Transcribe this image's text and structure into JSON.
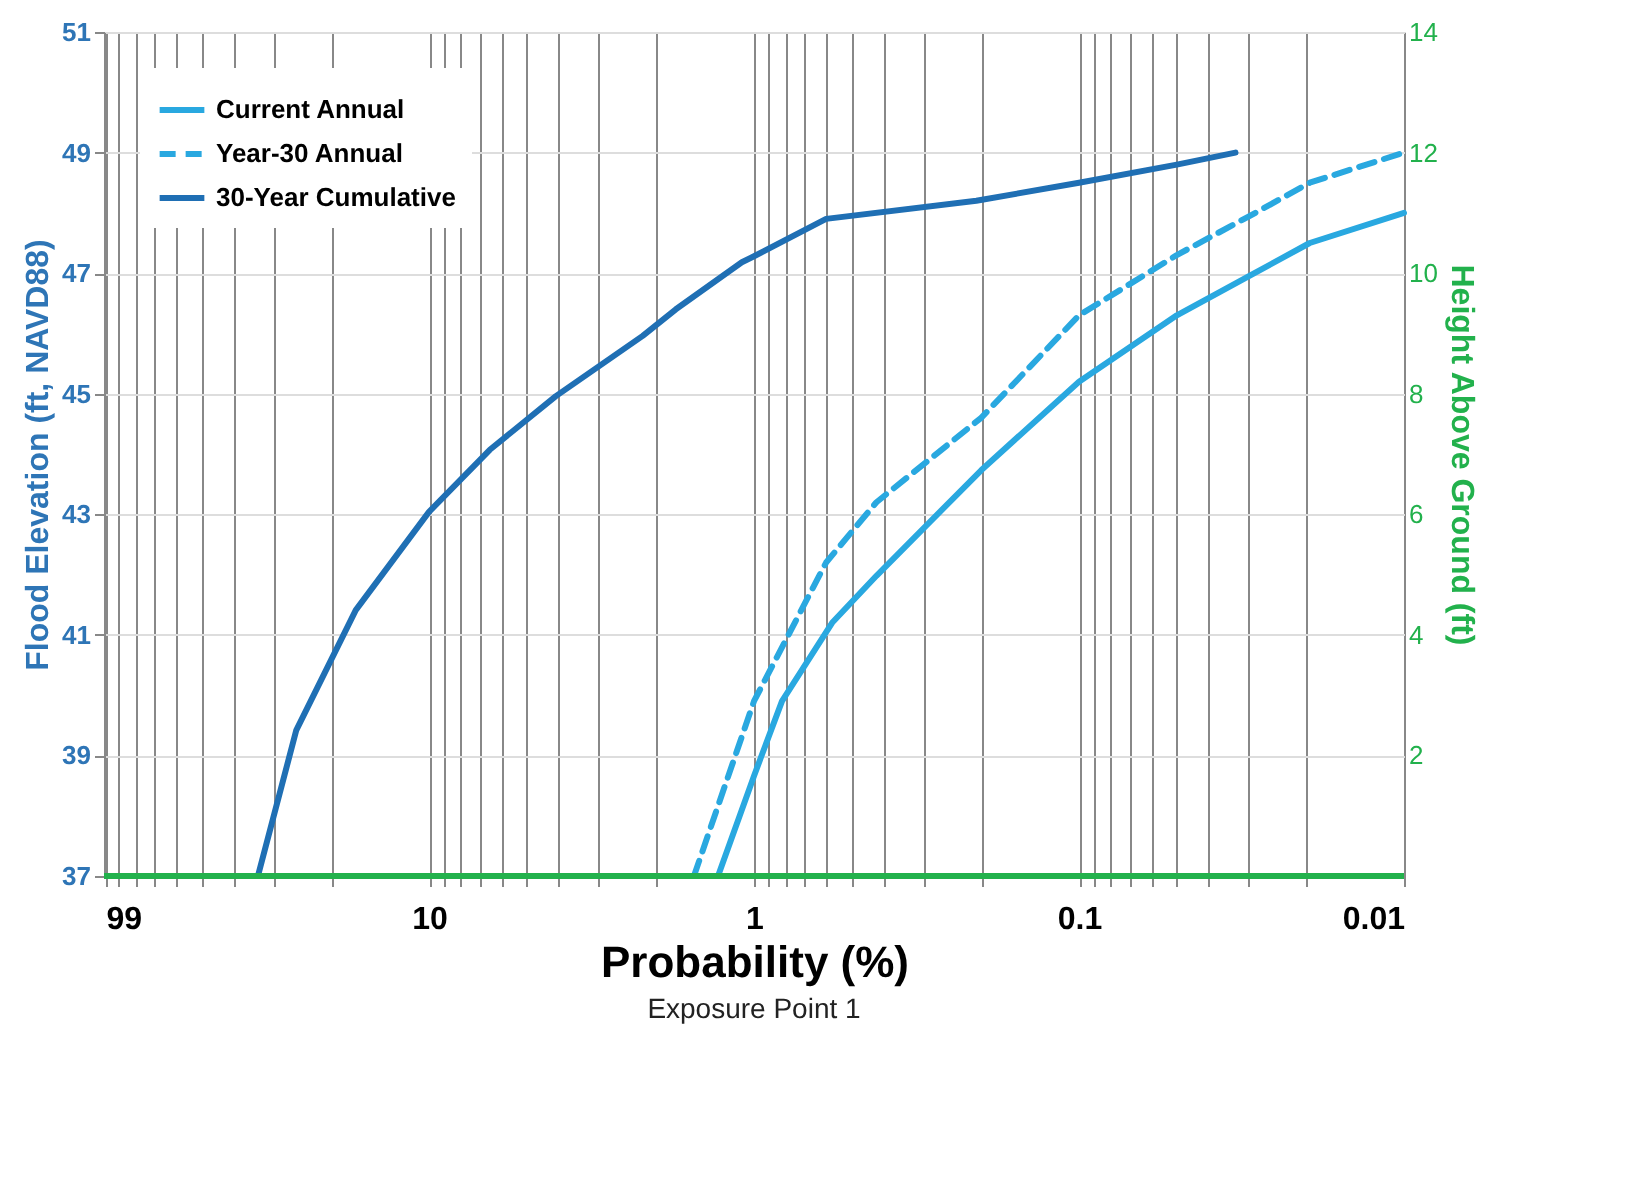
{
  "chart_data": {
    "type": "line",
    "xlabel": "Probability (%)",
    "ylabel": "Flood Elevation (ft, NAVD88)",
    "y2label": "Height Above Ground (ft)",
    "annotations": [
      "Exposure Point 1"
    ],
    "xlim": [
      100,
      0.01
    ],
    "log": "x",
    "xticks": [
      {
        "value": 99,
        "label": "99"
      },
      {
        "value": 90,
        "label": null
      },
      {
        "value": 80,
        "label": null
      },
      {
        "value": 70,
        "label": null
      },
      {
        "value": 60,
        "label": null
      },
      {
        "value": 50,
        "label": null
      },
      {
        "value": 40,
        "label": null
      },
      {
        "value": 30,
        "label": null
      },
      {
        "value": 20,
        "label": null
      },
      10,
      {
        "value": 9,
        "label": null
      },
      {
        "value": 8,
        "label": null
      },
      {
        "value": 7,
        "label": null
      },
      {
        "value": 6,
        "label": null
      },
      {
        "value": 5,
        "label": null
      },
      {
        "value": 4,
        "label": null
      },
      {
        "value": 3,
        "label": null
      },
      {
        "value": 2,
        "label": null
      },
      1,
      {
        "value": 0.9,
        "label": null
      },
      {
        "value": 0.8,
        "label": null
      },
      {
        "value": 0.7,
        "label": null
      },
      {
        "value": 0.6,
        "label": null
      },
      {
        "value": 0.5,
        "label": null
      },
      {
        "value": 0.4,
        "label": null
      },
      {
        "value": 0.3,
        "label": null
      },
      {
        "value": 0.2,
        "label": null
      },
      0.1,
      {
        "value": 0.09,
        "label": null
      },
      {
        "value": 0.08,
        "label": null
      },
      {
        "value": 0.07,
        "label": null
      },
      {
        "value": 0.06,
        "label": null
      },
      {
        "value": 0.05,
        "label": null
      },
      {
        "value": 0.04,
        "label": null
      },
      {
        "value": 0.03,
        "label": null
      },
      {
        "value": 0.02,
        "label": null
      },
      0.01
    ],
    "ylim": [
      37,
      51
    ],
    "yticks": [
      37,
      39,
      41,
      43,
      45,
      47,
      49,
      51
    ],
    "y2lim": [
      0,
      14
    ],
    "y2ticks": [
      2,
      4,
      6,
      8,
      10,
      12,
      14
    ],
    "grid": true,
    "legend": "top left",
    "marker": "none",
    "ref_lines": [
      {
        "axis": "y2",
        "value": 0,
        "label": null,
        "color": "#22b14c"
      }
    ],
    "series": [
      {
        "name": "Current Annual",
        "color": "#29a8e0",
        "line_style": "solid",
        "x": [
          1.29,
          1,
          0.82,
          0.575,
          0.42,
          0.2,
          0.1,
          0.05,
          0.03,
          0.0195,
          0.01
        ],
        "values": [
          37,
          38.66,
          39.9,
          41.2,
          41.98,
          43.73,
          45.2,
          46.3,
          46.95,
          47.5,
          48.0
        ]
      },
      {
        "name": "Year-30 Annual",
        "color": "#29a8e0",
        "line_style": "dashed",
        "x": [
          1.53,
          1,
          0.6,
          0.42,
          0.2,
          0.1,
          0.05,
          0.0298,
          0.0195,
          0.01
        ],
        "values": [
          37,
          39.9,
          42.2,
          43.2,
          44.6,
          46.3,
          47.3,
          47.95,
          48.5,
          49.0
        ]
      },
      {
        "name": "30-Year Cumulative",
        "color": "#1f6fb4",
        "line_style": "solid",
        "x": [
          33.6,
          25.6,
          16.8,
          10,
          6.5,
          4.07,
          2.2,
          1.74,
          1.09,
          1,
          0.6,
          0.207,
          0.1,
          0.05,
          0.033
        ],
        "values": [
          37,
          39.42,
          41.41,
          43.04,
          44.07,
          44.96,
          45.96,
          46.4,
          47.18,
          47.28,
          47.9,
          48.2,
          48.5,
          48.8,
          49.0
        ]
      }
    ]
  }
}
